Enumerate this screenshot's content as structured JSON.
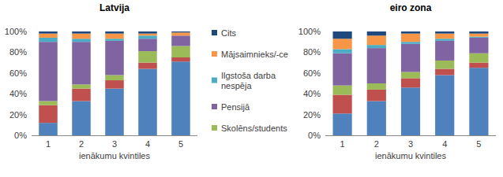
{
  "chart_data": [
    {
      "type": "bar",
      "stacked": true,
      "title": "Latvija",
      "x_label": "ienākumu kvintiles",
      "categories": [
        "1",
        "2",
        "3",
        "4",
        "5"
      ],
      "ylim": [
        0,
        100
      ],
      "yticks": [
        {
          "value": 0,
          "label": "0%"
        },
        {
          "value": 20,
          "label": "20%"
        },
        {
          "value": 40,
          "label": "40%"
        },
        {
          "value": 60,
          "label": "60%"
        },
        {
          "value": 80,
          "label": "80%"
        },
        {
          "value": 100,
          "label": "100%"
        }
      ],
      "grid": false,
      "legend": "right",
      "series": [
        {
          "name": null,
          "color": "#4f81bd",
          "values": [
            12,
            33,
            45,
            64,
            71
          ]
        },
        {
          "name": null,
          "color": "#c0504d",
          "values": [
            17,
            12,
            8,
            6,
            4
          ]
        },
        {
          "name": "Skolēns/students",
          "color": "#9bbb59",
          "values": [
            4,
            4,
            5,
            11,
            11
          ]
        },
        {
          "name": "Pensijā",
          "color": "#8064a2",
          "values": [
            57,
            41,
            33,
            12,
            10
          ]
        },
        {
          "name": "Ilgstoša darba nespēja",
          "color": "#4bacc6",
          "values": [
            4,
            3,
            2,
            3,
            0
          ]
        },
        {
          "name": "Mājsaimnieks/-ce",
          "color": "#f79646",
          "values": [
            4,
            5,
            5,
            2,
            3
          ]
        },
        {
          "name": "Cits",
          "color": "#1f497d",
          "values": [
            2,
            2,
            2,
            2,
            1
          ]
        }
      ]
    },
    {
      "type": "bar",
      "stacked": true,
      "title": "eiro zona",
      "x_label": "ienākumu kvintiles",
      "categories": [
        "1",
        "2",
        "3",
        "4",
        "5"
      ],
      "ylim": [
        0,
        100
      ],
      "yticks": [
        {
          "value": 0,
          "label": "0%"
        },
        {
          "value": 20,
          "label": "20%"
        },
        {
          "value": 40,
          "label": "40%"
        },
        {
          "value": 60,
          "label": "60%"
        },
        {
          "value": 80,
          "label": "80%"
        },
        {
          "value": 100,
          "label": "100%"
        }
      ],
      "grid": false,
      "series": [
        {
          "name": null,
          "color": "#4f81bd",
          "values": [
            21,
            33,
            46,
            58,
            65
          ]
        },
        {
          "name": null,
          "color": "#c0504d",
          "values": [
            18,
            11,
            9,
            6,
            5
          ]
        },
        {
          "name": null,
          "color": "#9bbb59",
          "values": [
            9,
            6,
            6,
            8,
            9
          ]
        },
        {
          "name": null,
          "color": "#8064a2",
          "values": [
            31,
            34,
            27,
            19,
            15
          ]
        },
        {
          "name": null,
          "color": "#4bacc6",
          "values": [
            4,
            3,
            2,
            2,
            1
          ]
        },
        {
          "name": null,
          "color": "#f79646",
          "values": [
            10,
            9,
            8,
            5,
            3
          ]
        },
        {
          "name": null,
          "color": "#1f497d",
          "values": [
            7,
            4,
            2,
            2,
            2
          ]
        }
      ]
    }
  ]
}
